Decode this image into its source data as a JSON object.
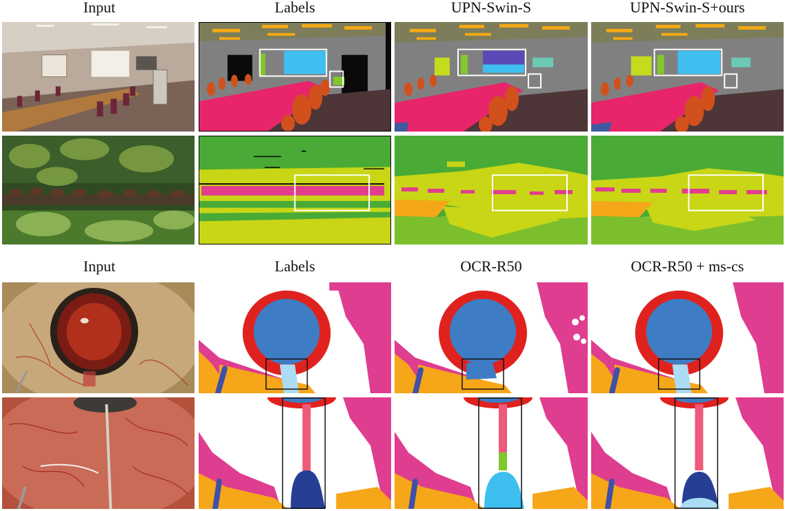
{
  "figure": {
    "top_headers": [
      "Input",
      "Labels",
      "UPN-Swin-S",
      "UPN-Swin-S+ours"
    ],
    "bottom_headers": [
      "Input",
      "Labels",
      "OCR-R50",
      "OCR-R50 + ms-cs"
    ],
    "palette": {
      "wall": "#808080",
      "ceiling": "#7d7d5a",
      "light": "#f2a814",
      "table": "#e8246a",
      "chair": "#d2501c",
      "floor": "#4d3538",
      "screen": "#3fbfef",
      "board": "#82c82a",
      "dark": "#0a0a0a",
      "teal": "#6ec9b4",
      "purple": "#5a4ab8",
      "lime": "#c4dc1c",
      "tree": "#49ab35",
      "grass": "#c8d616",
      "animal": "#e33d8c",
      "orange": "#f6a619",
      "iris": "#3e7cc4",
      "ring": "#e0221f",
      "skin": "#df3d8f",
      "tool": "#7ec8ec",
      "navy": "#263f94",
      "pink": "#ee5a7a"
    }
  }
}
